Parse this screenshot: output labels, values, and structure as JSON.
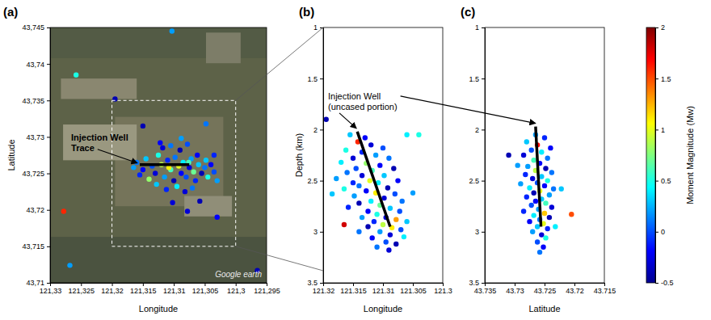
{
  "chart_data": [
    {
      "type": "scatter",
      "title": "(a)",
      "x_label": "Longitude",
      "y_label": "Latitude",
      "xlim": [
        121.33,
        121.295
      ],
      "ylim": [
        43.71,
        43.745
      ],
      "xticks": [
        {
          "value": 121.33,
          "label": "121,33"
        },
        {
          "value": 121.325,
          "label": "121,325"
        },
        {
          "value": 121.32,
          "label": "121,32"
        },
        {
          "value": 121.315,
          "label": "121,315"
        },
        {
          "value": 121.31,
          "label": "121,31"
        },
        {
          "value": 121.305,
          "label": "121,305"
        },
        {
          "value": 121.3,
          "label": "121,3"
        },
        {
          "value": 121.295,
          "label": "121,295"
        }
      ],
      "yticks": [
        {
          "value": 43.71,
          "label": "43,71"
        },
        {
          "value": 43.715,
          "label": "43,715"
        },
        {
          "value": 43.72,
          "label": "43,72"
        },
        {
          "value": 43.725,
          "label": "43,725"
        },
        {
          "value": 43.73,
          "label": "43,73"
        },
        {
          "value": 43.735,
          "label": "43,735"
        },
        {
          "value": 43.74,
          "label": "43,74"
        },
        {
          "value": 43.745,
          "label": "43,745"
        }
      ],
      "x": [
        121.316,
        121.315,
        121.3145,
        121.3135,
        121.313,
        121.3125,
        121.312,
        121.3115,
        121.311,
        121.3105,
        121.31,
        121.3098,
        121.3092,
        121.3088,
        121.3085,
        121.308,
        121.3075,
        121.3072,
        121.3068,
        121.3065,
        121.306,
        121.3055,
        121.305,
        121.3045,
        121.304,
        121.3035,
        121.303,
        121.3118,
        121.3105,
        121.309,
        121.3078,
        121.3128,
        121.3112,
        121.3095,
        121.3082,
        121.307,
        121.314,
        121.3155,
        121.3165,
        121.3062,
        121.3048,
        121.3102,
        121.3058,
        121.3122,
        121.3088,
        121.3035,
        121.3108,
        121.3076,
        121.3103,
        121.3258,
        121.3195,
        121.3278,
        121.3268,
        121.2965,
        121.3048,
        121.303,
        121.3078,
        121.315
      ],
      "y": [
        43.7265,
        43.7255,
        43.727,
        43.726,
        43.725,
        43.7275,
        43.7262,
        43.7245,
        43.7268,
        43.7255,
        43.724,
        43.7272,
        43.726,
        43.725,
        43.7265,
        43.7245,
        43.7258,
        43.727,
        43.7252,
        43.724,
        43.7262,
        43.725,
        43.7258,
        43.7245,
        43.7262,
        43.7252,
        43.724,
        43.7285,
        43.7288,
        43.7282,
        43.729,
        43.7235,
        43.7228,
        43.7232,
        43.7225,
        43.723,
        43.7242,
        43.7248,
        43.7258,
        43.7275,
        43.7268,
        43.721,
        43.7212,
        43.7292,
        43.7298,
        43.7275,
        43.7258,
        43.7265,
        43.7445,
        43.7385,
        43.7352,
        43.7198,
        43.7124,
        43.7117,
        43.7318,
        43.719,
        43.7198,
        43.7315
      ],
      "magnitude": [
        0.1,
        -0.2,
        0.3,
        0,
        -0.3,
        0.5,
        0.9,
        0.2,
        -0.1,
        0.6,
        -0.4,
        0.1,
        1,
        -0.2,
        0.4,
        0,
        -0.3,
        0.2,
        0.7,
        -0.1,
        0.3,
        -0.4,
        0.1,
        0.5,
        -0.2,
        0,
        0.2,
        -0.3,
        0.1,
        -0.4,
        0,
        0.3,
        -0.1,
        0.4,
        -0.3,
        0.1,
        0.8,
        -0.1,
        0.2,
        -0.2,
        0.3,
        -0.3,
        -0.4,
        -0.2,
        0.2,
        -0.1,
        1.1,
        0.6,
        0.2,
        0.5,
        -0.4,
        1.6,
        0.2,
        -0.4,
        0.1,
        -0.2,
        -0.3,
        -0.4
      ],
      "well_trace": {
        "label": [
          "Injection Well",
          "Trace"
        ],
        "x": [
          121.3155,
          121.3075
        ],
        "y": [
          43.7262,
          43.7262
        ]
      },
      "inset_box": {
        "xlim": [
          121.32,
          121.3
        ],
        "ylim": [
          43.715,
          43.735
        ]
      },
      "watermark": "Google earth"
    },
    {
      "type": "scatter",
      "title": "(b)",
      "x_label": "Longitude",
      "y_label": "Depth (km)",
      "xlim": [
        121.32,
        121.3
      ],
      "ylim": [
        3.5,
        1
      ],
      "xticks": [
        121.32,
        121.315,
        121.31,
        121.305,
        121.3
      ],
      "yticks": [
        1,
        1.5,
        2,
        2.5,
        3,
        3.5
      ],
      "x": [
        121.3195,
        121.3155,
        121.313,
        121.306,
        121.3142,
        121.312,
        121.31,
        121.3162,
        121.3135,
        121.3112,
        121.315,
        121.309,
        121.317,
        121.3128,
        121.3105,
        121.3145,
        121.3082,
        121.3118,
        121.316,
        121.3135,
        121.3098,
        121.3178,
        121.3122,
        121.315,
        121.3108,
        121.3075,
        121.314,
        121.3092,
        121.3165,
        121.3128,
        121.3112,
        121.308,
        121.3148,
        121.3098,
        121.312,
        121.3068,
        121.314,
        121.3105,
        121.3158,
        121.3088,
        121.3125,
        121.3072,
        121.311,
        121.3095,
        121.3135,
        121.3078,
        121.3115,
        121.306,
        121.31,
        121.3085,
        121.3125,
        121.307,
        121.3105,
        121.314,
        121.3088,
        121.3065,
        121.3118,
        121.3095,
        121.3078,
        121.311,
        121.309,
        121.3165,
        121.305,
        121.3185,
        121.304
      ],
      "y": [
        1.9,
        2.05,
        2.08,
        2.05,
        2.12,
        2.15,
        2.18,
        2.2,
        2.22,
        2.25,
        2.28,
        2.28,
        2.32,
        2.33,
        2.35,
        2.38,
        2.38,
        2.4,
        2.42,
        2.45,
        2.45,
        2.48,
        2.5,
        2.52,
        2.52,
        2.5,
        2.55,
        2.57,
        2.58,
        2.6,
        2.62,
        2.63,
        2.65,
        2.67,
        2.7,
        2.7,
        2.72,
        2.74,
        2.76,
        2.77,
        2.8,
        2.8,
        2.83,
        2.86,
        2.86,
        2.88,
        2.9,
        2.9,
        2.93,
        2.96,
        2.95,
        2.98,
        3,
        3,
        3.03,
        3.05,
        3.06,
        3.1,
        3.12,
        3.15,
        3.18,
        2.93,
        2.62,
        2.63,
        2.05
      ],
      "magnitude": [
        -0.4,
        0.3,
        -0.2,
        0.4,
        1.6,
        -0.3,
        0,
        0.5,
        -0.1,
        0.2,
        -0.3,
        0.1,
        0.4,
        0.8,
        -0.2,
        0,
        -0.4,
        0.6,
        0.1,
        -0.3,
        0.3,
        0.2,
        1,
        -0.1,
        0.4,
        -0.2,
        0.1,
        -0.4,
        0.5,
        -0.2,
        1.1,
        0,
        0.2,
        -0.3,
        0.4,
        0.1,
        -0.4,
        0.7,
        -0.1,
        0.3,
        -0.2,
        0,
        0.5,
        -0.3,
        0.2,
        1.3,
        -0.1,
        0.3,
        0.9,
        1.1,
        -0.4,
        0,
        0.2,
        0.1,
        -0.3,
        0.4,
        -0.2,
        0,
        -0.4,
        0.1,
        -0.3,
        1.8,
        0.2,
        0.3,
        0.5
      ],
      "well_trace": {
        "label": [
          "Injection Well",
          "(uncased portion)"
        ],
        "x": [
          121.3143,
          121.3088
        ],
        "y": [
          2.02,
          2.95
        ]
      }
    },
    {
      "type": "scatter",
      "title": "(c)",
      "x_label": "Latitude",
      "xlim": [
        43.735,
        43.715
      ],
      "ylim": [
        3.5,
        1
      ],
      "xticks": [
        43.735,
        43.73,
        43.725,
        43.72,
        43.715
      ],
      "yticks": [
        1,
        1.5,
        2,
        2.5,
        3,
        3.5
      ],
      "x": [
        43.731,
        43.7265,
        43.725,
        43.728,
        43.7262,
        43.724,
        43.7272,
        43.7255,
        43.7285,
        43.7245,
        43.7268,
        43.7258,
        43.7278,
        43.7248,
        43.7265,
        43.7238,
        43.7282,
        43.7255,
        43.727,
        43.7245,
        43.7262,
        43.729,
        43.725,
        43.7275,
        43.7235,
        43.7258,
        43.7268,
        43.7242,
        43.728,
        43.7255,
        43.7265,
        43.7248,
        43.7272,
        43.7238,
        43.726,
        43.7285,
        43.725,
        43.7268,
        43.7242,
        43.7258,
        43.7275,
        43.7252,
        43.7262,
        43.7245,
        43.727,
        43.7255,
        43.7248,
        43.7262,
        43.7252,
        43.7258,
        43.7205,
        43.7222,
        43.7295,
        43.7232
      ],
      "y": [
        2.25,
        2.05,
        2.08,
        2.12,
        2.15,
        2.18,
        2.2,
        2.22,
        2.25,
        2.28,
        2.3,
        2.33,
        2.36,
        2.38,
        2.4,
        2.42,
        2.44,
        2.46,
        2.48,
        2.5,
        2.52,
        2.53,
        2.55,
        2.57,
        2.58,
        2.6,
        2.62,
        2.64,
        2.66,
        2.68,
        2.7,
        2.72,
        2.74,
        2.76,
        2.78,
        2.8,
        2.82,
        2.84,
        2.86,
        2.88,
        2.9,
        2.92,
        2.95,
        2.97,
        3,
        3.03,
        3.06,
        3.1,
        3.15,
        3.2,
        2.83,
        2.58,
        2.35,
        2.95
      ],
      "magnitude": [
        -0.4,
        0.2,
        -0.1,
        0.3,
        1.7,
        -0.2,
        0,
        0.4,
        -0.3,
        0.1,
        0.6,
        -0.2,
        0.2,
        -0.4,
        0.9,
        0.1,
        -0.1,
        0.3,
        -0.3,
        0.5,
        0,
        0.2,
        -0.2,
        0.4,
        0.1,
        1,
        -0.4,
        0.2,
        -0.1,
        0.3,
        -0.2,
        0.6,
        0,
        -0.3,
        0.2,
        -0.1,
        1.2,
        0.4,
        -0.4,
        0.1,
        -0.2,
        1,
        0.3,
        -0.1,
        0.2,
        -0.3,
        0.5,
        0,
        -0.2,
        0.1,
        1.5,
        0.3,
        0.2,
        0.4
      ],
      "well_trace": {
        "x": [
          43.7265,
          43.7256
        ],
        "y": [
          1.97,
          2.95
        ]
      }
    }
  ],
  "colorbar": {
    "label": "Moment Magnitude (Mw)",
    "range": [
      -0.5,
      2
    ],
    "ticks": [
      -0.5,
      0,
      0.5,
      1,
      1.5,
      2
    ]
  }
}
